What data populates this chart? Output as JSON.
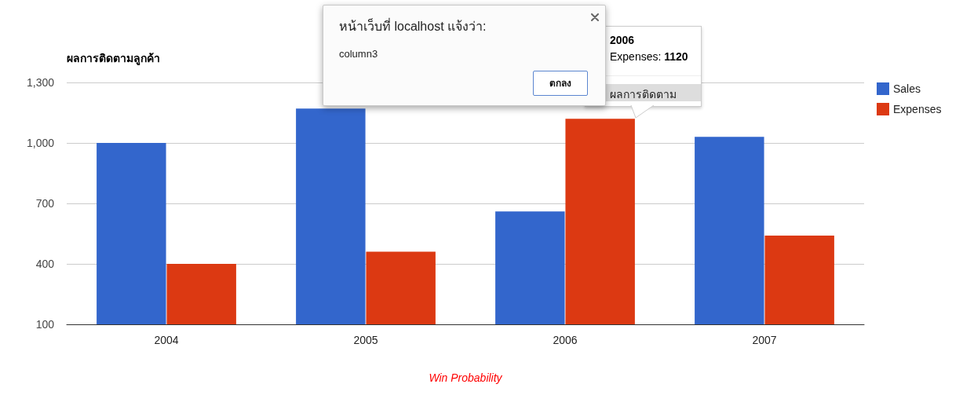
{
  "chart_data": {
    "type": "bar",
    "title": "ผลการติดตามลูกค้า",
    "xlabel": "Win Probability",
    "categories": [
      "2004",
      "2005",
      "2006",
      "2007"
    ],
    "series": [
      {
        "name": "Sales",
        "color": "#3366cc",
        "values": [
          1000,
          1170,
          660,
          1030
        ]
      },
      {
        "name": "Expenses",
        "color": "#dc3912",
        "values": [
          400,
          460,
          1120,
          540
        ]
      }
    ],
    "ylim": [
      100,
      1300
    ],
    "yticks": [
      100,
      400,
      700,
      {
        "value": 1000,
        "label": "1,000"
      },
      {
        "value": 1300,
        "label": "1,300"
      }
    ],
    "grid": "y",
    "legend": "right",
    "annotations": [
      "หน้าเว็บที่ localhost แจ้งว่า:",
      "column3",
      "ตกลง",
      "2006",
      "Expenses: 1120",
      "ผลการติดตาม"
    ]
  }
}
